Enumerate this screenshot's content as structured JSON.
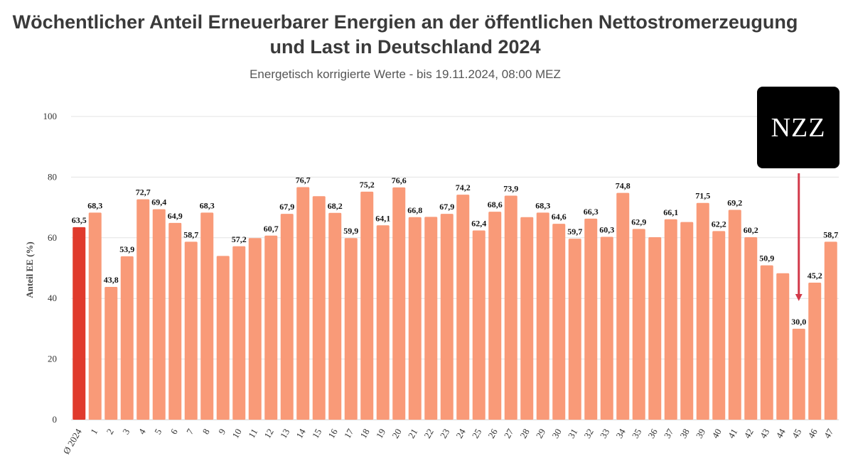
{
  "chart_data": {
    "type": "bar",
    "title": [
      "Wöchentlicher Anteil Erneuerbarer Energien an der öffentlichen Nettostromerzeugung",
      "und Last in Deutschland 2024"
    ],
    "subtitle": "Energetisch korrigierte Werte - bis 19.11.2024, 08:00 MEZ",
    "ylabel": "Anteil EE (%)",
    "xlabel": "",
    "ylim": [
      0,
      100
    ],
    "yticks": [
      0,
      20,
      40,
      60,
      80,
      100
    ],
    "grid": true,
    "categories": [
      "Ø 2024",
      "1",
      "2",
      "3",
      "4",
      "5",
      "6",
      "7",
      "8",
      "9",
      "10",
      "11",
      "12",
      "13",
      "14",
      "15",
      "16",
      "17",
      "18",
      "19",
      "20",
      "21",
      "22",
      "23",
      "24",
      "25",
      "26",
      "27",
      "28",
      "29",
      "30",
      "31",
      "32",
      "33",
      "34",
      "35",
      "36",
      "37",
      "38",
      "39",
      "40",
      "41",
      "42",
      "43",
      "44",
      "45",
      "46",
      "47"
    ],
    "values": [
      63.5,
      68.3,
      43.8,
      53.9,
      72.7,
      69.4,
      64.9,
      58.7,
      68.3,
      54.0,
      57.2,
      59.9,
      60.7,
      67.9,
      76.7,
      73.7,
      68.2,
      59.9,
      75.2,
      64.1,
      76.6,
      66.8,
      66.9,
      67.9,
      74.2,
      62.4,
      68.6,
      73.9,
      66.8,
      68.3,
      64.6,
      59.7,
      66.3,
      60.3,
      74.8,
      62.9,
      60.2,
      66.1,
      65.2,
      71.5,
      62.2,
      69.2,
      60.2,
      50.9,
      48.3,
      30.0,
      45.2,
      58.7
    ],
    "value_labels": [
      "63,5",
      "68,3",
      "43,8",
      "53,9",
      "72,7",
      "69,4",
      "64,9",
      "58,7",
      "68,3",
      "",
      "57,2",
      "",
      "60,7",
      "67,9",
      "76,7",
      "",
      "68,2",
      "59,9",
      "75,2",
      "64,1",
      "76,6",
      "66,8",
      "",
      "67,9",
      "74,2",
      "62,4",
      "68,6",
      "73,9",
      "",
      "68,3",
      "64,6",
      "59,7",
      "66,3",
      "60,3",
      "74,8",
      "62,9",
      "",
      "66,1",
      "",
      "71,5",
      "62,2",
      "69,2",
      "60,2",
      "50,9",
      "",
      "30,0",
      "45,2",
      "58,7"
    ],
    "colors": {
      "average": "#e03a2c",
      "weekly": "#f99a78",
      "gridline": "#e3e3e3",
      "arrow": "#d23a4a"
    },
    "annotation": {
      "type": "arrow",
      "target_category": "45"
    }
  },
  "logo": {
    "text": "NZZ"
  }
}
